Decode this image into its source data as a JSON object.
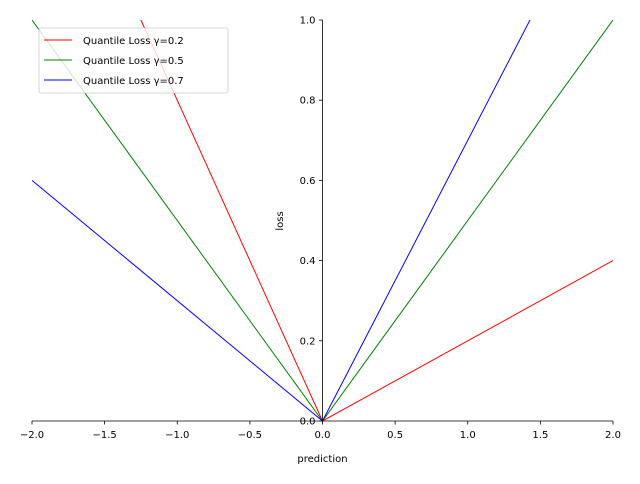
{
  "chart_data": {
    "type": "line",
    "title": "",
    "xlabel": "prediction",
    "ylabel": "loss",
    "xlim": [
      -2.0,
      2.0
    ],
    "ylim": [
      0.0,
      1.0
    ],
    "xticks": [
      -2.0,
      -1.5,
      -1.0,
      -0.5,
      0.0,
      0.5,
      1.0,
      1.5,
      2.0
    ],
    "xtick_labels": [
      "−2.0",
      "−1.5",
      "−1.0",
      "−0.5",
      "0.0",
      "0.5",
      "1.0",
      "1.5",
      "2.0"
    ],
    "yticks": [
      0.0,
      0.2,
      0.4,
      0.6,
      0.8,
      1.0
    ],
    "ytick_labels": [
      "0.0",
      "0.2",
      "0.4",
      "0.6",
      "0.8",
      "1.0"
    ],
    "grid": false,
    "legend_position": "top-left",
    "series": [
      {
        "name": "Quantile Loss γ=0.2",
        "color": "#ff0000",
        "x": [
          -2.0,
          0.0,
          2.0
        ],
        "y": [
          1.6,
          0.0,
          0.4
        ]
      },
      {
        "name": "Quantile Loss γ=0.5",
        "color": "#008000",
        "x": [
          -2.0,
          0.0,
          2.0
        ],
        "y": [
          1.0,
          0.0,
          1.0
        ]
      },
      {
        "name": "Quantile Loss γ=0.7",
        "color": "#0000ff",
        "x": [
          -2.0,
          0.0,
          2.0
        ],
        "y": [
          0.6,
          0.0,
          1.4
        ]
      }
    ]
  }
}
